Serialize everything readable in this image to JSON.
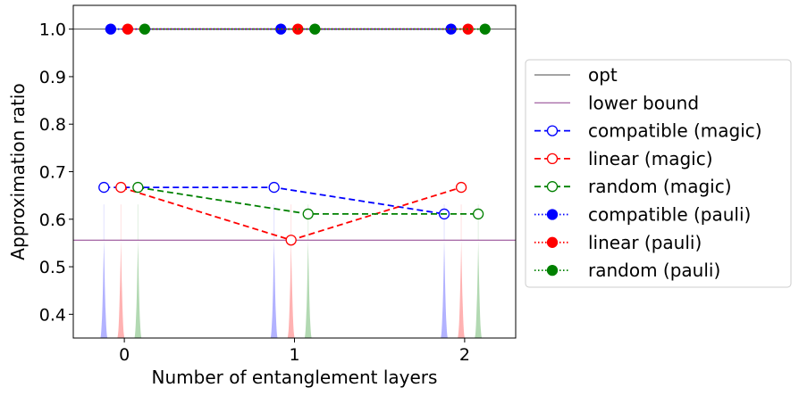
{
  "chart_data": {
    "type": "line",
    "xlabel": "Number of entanglement layers",
    "ylabel": "Approximation ratio",
    "xlim": [
      -0.3,
      2.3
    ],
    "ylim": [
      0.35,
      1.05
    ],
    "x_ticks": [
      0,
      1,
      2
    ],
    "y_ticks": [
      0.4,
      0.5,
      0.6,
      0.7,
      0.8,
      0.9,
      1.0
    ],
    "x_tick_labels": [
      "0",
      "1",
      "2"
    ],
    "y_tick_labels": [
      "0.4",
      "0.5",
      "0.6",
      "0.7",
      "0.8",
      "0.9",
      "1.0"
    ],
    "grid": false,
    "legend_position": "outside-right",
    "reference_lines": [
      {
        "name": "opt",
        "y": 1.0,
        "color": "#4a4a4a"
      },
      {
        "name": "lower bound",
        "y": 0.556,
        "color": "#8b3a8b"
      }
    ],
    "series": [
      {
        "name": "compatible (magic)",
        "color": "#0000ff",
        "linestyle": "dashed",
        "marker": "open",
        "x": [
          -0.12,
          0.88,
          1.88
        ],
        "values": [
          0.667,
          0.667,
          0.611
        ]
      },
      {
        "name": "linear (magic)",
        "color": "#ff0000",
        "linestyle": "dashed",
        "marker": "open",
        "x": [
          -0.02,
          0.98,
          1.98
        ],
        "values": [
          0.667,
          0.556,
          0.667
        ]
      },
      {
        "name": "random (magic)",
        "color": "#008000",
        "linestyle": "dashed",
        "marker": "open",
        "x": [
          0.08,
          1.08,
          2.08
        ],
        "values": [
          0.667,
          0.611,
          0.611
        ]
      },
      {
        "name": "compatible (pauli)",
        "color": "#0000ff",
        "linestyle": "dotted",
        "marker": "filled",
        "x": [
          -0.08,
          0.92,
          1.92
        ],
        "values": [
          1.0,
          1.0,
          1.0
        ]
      },
      {
        "name": "linear (pauli)",
        "color": "#ff0000",
        "linestyle": "dotted",
        "marker": "filled",
        "x": [
          0.02,
          1.02,
          2.02
        ],
        "values": [
          1.0,
          1.0,
          1.0
        ]
      },
      {
        "name": "random (pauli)",
        "color": "#008000",
        "linestyle": "dotted",
        "marker": "filled",
        "x": [
          0.12,
          1.12,
          2.12
        ],
        "values": [
          1.0,
          1.0,
          1.0
        ]
      }
    ],
    "distributions": [
      {
        "color": "#0000ff",
        "x": -0.12,
        "peak": 0.556
      },
      {
        "color": "#ff0000",
        "x": -0.02,
        "peak": 0.556
      },
      {
        "color": "#008000",
        "x": 0.08,
        "peak": 0.556
      },
      {
        "color": "#0000ff",
        "x": 0.88,
        "peak": 0.556
      },
      {
        "color": "#ff0000",
        "x": 0.98,
        "peak": 0.556
      },
      {
        "color": "#008000",
        "x": 1.08,
        "peak": 0.556
      },
      {
        "color": "#0000ff",
        "x": 1.88,
        "peak": 0.556
      },
      {
        "color": "#ff0000",
        "x": 1.98,
        "peak": 0.556
      },
      {
        "color": "#008000",
        "x": 2.08,
        "peak": 0.556
      }
    ]
  }
}
